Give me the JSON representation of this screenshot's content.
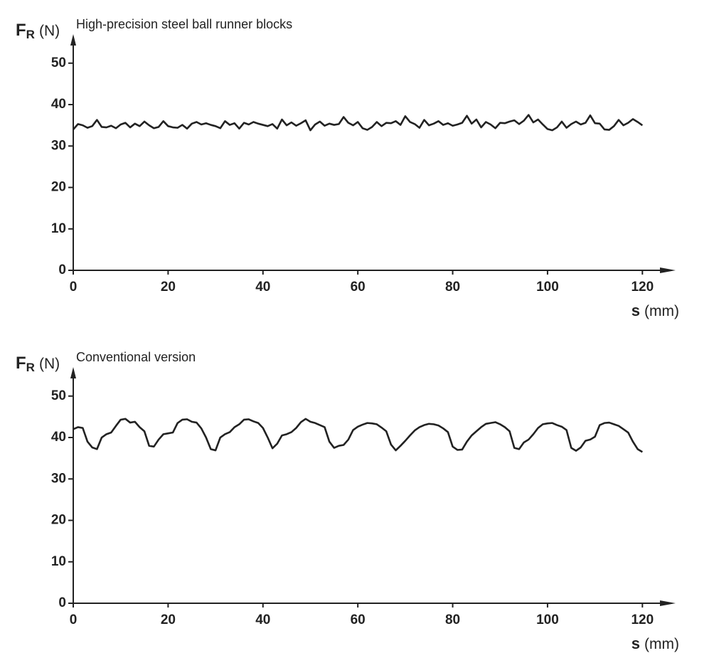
{
  "chart_data": [
    {
      "type": "line",
      "title": "High-precision steel ball runner blocks",
      "ylabel": {
        "symbol": "F",
        "subscript": "R",
        "unit": "(N)"
      },
      "xlabel": {
        "symbol": "s",
        "unit": "(mm)"
      },
      "color": "#222222",
      "xlim": [
        0,
        127
      ],
      "ylim": [
        0,
        57
      ],
      "xticks": [
        0,
        20,
        40,
        60,
        80,
        100,
        120
      ],
      "yticks": [
        0,
        10,
        20,
        30,
        40,
        50
      ],
      "x": [
        0,
        1,
        2,
        3,
        4,
        5,
        6,
        7,
        8,
        9,
        10,
        11,
        12,
        13,
        14,
        15,
        16,
        17,
        18,
        19,
        20,
        21,
        22,
        23,
        24,
        25,
        26,
        27,
        28,
        29,
        30,
        31,
        32,
        33,
        34,
        35,
        36,
        37,
        38,
        39,
        40,
        41,
        42,
        43,
        44,
        45,
        46,
        47,
        48,
        49,
        50,
        51,
        52,
        53,
        54,
        55,
        56,
        57,
        58,
        59,
        60,
        61,
        62,
        63,
        64,
        65,
        66,
        67,
        68,
        69,
        70,
        71,
        72,
        73,
        74,
        75,
        76,
        77,
        78,
        79,
        80,
        81,
        82,
        83,
        84,
        85,
        86,
        87,
        88,
        89,
        90,
        91,
        92,
        93,
        94,
        95,
        96,
        97,
        98,
        99,
        100,
        101,
        102,
        103,
        104,
        105,
        106,
        107,
        108,
        109,
        110,
        111,
        112,
        113,
        114,
        115,
        116,
        117,
        118,
        119,
        120
      ],
      "values": [
        34,
        35.3,
        35,
        34.4,
        34.8,
        36.3,
        34.6,
        34.5,
        34.9,
        34.3,
        35.2,
        35.6,
        34.5,
        35.4,
        34.8,
        35.9,
        35,
        34.3,
        34.6,
        36,
        34.8,
        34.5,
        34.4,
        35.1,
        34.2,
        35.4,
        35.8,
        35.2,
        35.5,
        35.1,
        34.8,
        34.3,
        36,
        35.1,
        35.5,
        34.2,
        35.6,
        35.2,
        35.8,
        35.4,
        35.1,
        34.8,
        35.3,
        34.2,
        36.4,
        35,
        35.7,
        34.9,
        35.5,
        36.2,
        33.8,
        35.2,
        35.9,
        34.9,
        35.4,
        35.1,
        35.3,
        37,
        35.6,
        35,
        35.8,
        34.3,
        33.9,
        34.6,
        35.8,
        34.8,
        35.6,
        35.5,
        36,
        35.1,
        37.2,
        35.8,
        35.3,
        34.4,
        36.3,
        35,
        35.4,
        36,
        35.1,
        35.5,
        34.9,
        35.2,
        35.6,
        37.3,
        35.4,
        36.4,
        34.5,
        35.8,
        35.2,
        34.3,
        35.6,
        35.5,
        35.9,
        36.2,
        35.3,
        36.1,
        37.5,
        35.7,
        36.4,
        35.2,
        34.1,
        33.8,
        34.5,
        35.9,
        34.4,
        35.3,
        35.9,
        35.2,
        35.6,
        37.4,
        35.5,
        35.4,
        34,
        33.9,
        34.8,
        36.3,
        35,
        35.6,
        36.5,
        35.8,
        35
      ]
    },
    {
      "type": "line",
      "title": "Conventional version",
      "ylabel": {
        "symbol": "F",
        "subscript": "R",
        "unit": "(N)"
      },
      "xlabel": {
        "symbol": "s",
        "unit": "(mm)"
      },
      "color": "#222222",
      "xlim": [
        0,
        127
      ],
      "ylim": [
        0,
        57
      ],
      "xticks": [
        0,
        20,
        40,
        60,
        80,
        100,
        120
      ],
      "yticks": [
        0,
        10,
        20,
        30,
        40,
        50
      ],
      "x": [
        0,
        1,
        2,
        3,
        4,
        5,
        6,
        7,
        8,
        9,
        10,
        11,
        12,
        13,
        14,
        15,
        16,
        17,
        18,
        19,
        20,
        21,
        22,
        23,
        24,
        25,
        26,
        27,
        28,
        29,
        30,
        31,
        32,
        33,
        34,
        35,
        36,
        37,
        38,
        39,
        40,
        41,
        42,
        43,
        44,
        45,
        46,
        47,
        48,
        49,
        50,
        51,
        52,
        53,
        54,
        55,
        56,
        57,
        58,
        59,
        60,
        61,
        62,
        63,
        64,
        65,
        66,
        67,
        68,
        69,
        70,
        71,
        72,
        73,
        74,
        75,
        76,
        77,
        78,
        79,
        80,
        81,
        82,
        83,
        84,
        85,
        86,
        87,
        88,
        89,
        90,
        91,
        92,
        93,
        94,
        95,
        96,
        97,
        98,
        99,
        100,
        101,
        102,
        103,
        104,
        105,
        106,
        107,
        108,
        109,
        110,
        111,
        112,
        113,
        114,
        115,
        116,
        117,
        118,
        119,
        120
      ],
      "values": [
        42,
        42.5,
        42.3,
        39,
        37.6,
        37.2,
        40,
        40.8,
        41.2,
        42.8,
        44.3,
        44.5,
        43.6,
        43.8,
        42.5,
        41.5,
        38,
        37.8,
        39.5,
        40.8,
        41,
        41.2,
        43.5,
        44.3,
        44.4,
        43.8,
        43.6,
        42.2,
        40,
        37.2,
        36.9,
        40,
        40.8,
        41.3,
        42.5,
        43.2,
        44.3,
        44.4,
        43.9,
        43.5,
        42.3,
        40,
        37.4,
        38.5,
        40.5,
        40.8,
        41.3,
        42.3,
        43.7,
        44.5,
        43.8,
        43.5,
        43,
        42.5,
        39,
        37.5,
        38,
        38.2,
        39.5,
        41.8,
        42.6,
        43.1,
        43.5,
        43.4,
        43.2,
        42.4,
        41.5,
        38.3,
        36.9,
        38,
        39.2,
        40.5,
        41.7,
        42.5,
        43,
        43.3,
        43.2,
        42.9,
        42.2,
        41.3,
        37.8,
        37,
        37.1,
        39,
        40.5,
        41.5,
        42.5,
        43.3,
        43.5,
        43.7,
        43.2,
        42.5,
        41.5,
        37.5,
        37.2,
        38.8,
        39.5,
        40.8,
        42.3,
        43.2,
        43.4,
        43.5,
        43,
        42.6,
        41.8,
        37.5,
        36.8,
        37.6,
        39.2,
        39.5,
        40.2,
        43,
        43.5,
        43.6,
        43.2,
        42.8,
        42,
        41.2,
        39,
        37.2,
        36.5
      ]
    }
  ]
}
